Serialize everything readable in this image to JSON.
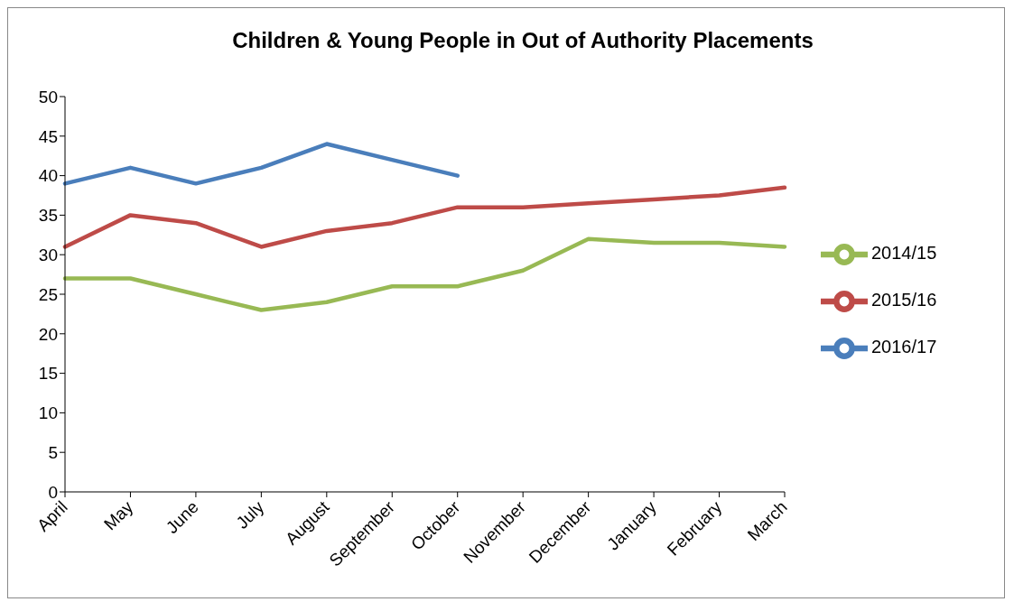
{
  "chart_data": {
    "type": "line",
    "title": "Children & Young People in Out of Authority Placements",
    "categories": [
      "April",
      "May",
      "June",
      "July",
      "August",
      "September",
      "October",
      "November",
      "December",
      "January",
      "February",
      "March"
    ],
    "series": [
      {
        "name": "2016/17",
        "color": "#4a7ebb",
        "values": [
          39,
          41,
          39,
          41,
          44,
          42,
          40,
          null,
          null,
          null,
          null,
          null
        ]
      },
      {
        "name": "2015/16",
        "color": "#be4b48",
        "values": [
          31,
          35,
          34,
          31,
          33,
          34,
          36,
          36,
          36.5,
          37,
          37.5,
          38.5
        ]
      },
      {
        "name": "2014/15",
        "color": "#98b954",
        "values": [
          27,
          27,
          25,
          23,
          24,
          26,
          26,
          28,
          32,
          31.5,
          31.5,
          31
        ]
      }
    ],
    "ylim": [
      0,
      50
    ],
    "yticks": [
      0,
      5,
      10,
      15,
      20,
      25,
      30,
      35,
      40,
      45,
      50
    ],
    "legend": "right",
    "marker": "none",
    "line_style": "solid"
  }
}
